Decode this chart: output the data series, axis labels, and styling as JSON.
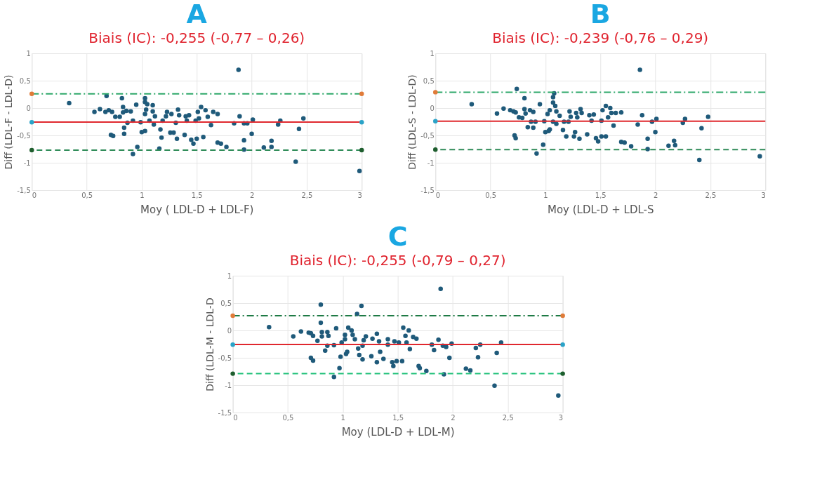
{
  "chart_data": [
    {
      "type": "scatter",
      "title": "A",
      "subtitle": "Biais (IC): -0,255 (-0,77 – 0,26)",
      "xlabel": "Moy ( LDL-D + LDL-F)",
      "ylabel": "Diff (LDL-F - LDL-D)",
      "xlim": [
        0,
        3
      ],
      "ylim": [
        -1.5,
        1
      ],
      "xticks": [
        {
          "value": 0,
          "label": "0"
        },
        {
          "value": 0.5,
          "label": "0,5"
        },
        {
          "value": 1,
          "label": "1"
        },
        {
          "value": 1.5,
          "label": "1,5"
        },
        {
          "value": 2,
          "label": "2"
        },
        {
          "value": 2.5,
          "label": "2,5"
        },
        {
          "value": 3,
          "label": "3"
        }
      ],
      "yticks": [
        {
          "value": -1.5,
          "label": "-1,5"
        },
        {
          "value": -1,
          "label": "-1"
        },
        {
          "value": -0.5,
          "label": "-0,5"
        },
        {
          "value": 0,
          "label": "0"
        },
        {
          "value": 0.5,
          "label": "0,5"
        },
        {
          "value": 1,
          "label": "1"
        }
      ],
      "grid": true,
      "marker": "circle",
      "series": [
        {
          "type": "scatter",
          "color": "#1f5a7a",
          "x": [
            0.34,
            0.57,
            0.62,
            0.68,
            0.67,
            0.7,
            0.73,
            0.72,
            0.74,
            0.76,
            0.8,
            0.82,
            0.83,
            0.83,
            0.84,
            0.84,
            0.86,
            0.87,
            0.9,
            0.92,
            0.95,
            0.92,
            0.96,
            0.99,
            1.0,
            1.03,
            1.03,
            1.05,
            1.04,
            1.03,
            1.03,
            1.07,
            1.1,
            1.1,
            1.12,
            1.11,
            1.17,
            1.18,
            1.16,
            1.19,
            1.23,
            1.22,
            1.27,
            1.26,
            1.29,
            1.31,
            1.32,
            1.33,
            1.34,
            1.39,
            1.4,
            1.41,
            1.43,
            1.45,
            1.47,
            1.49,
            1.5,
            1.51,
            1.52,
            1.54,
            1.56,
            1.58,
            1.6,
            1.63,
            1.65,
            1.69,
            1.69,
            1.72,
            1.77,
            1.84,
            1.88,
            1.89,
            1.93,
            1.93,
            1.93,
            1.96,
            2.0,
            2.01,
            2.11,
            2.18,
            2.18,
            2.24,
            2.26,
            2.4,
            2.43,
            2.47,
            2.98
          ],
          "values": [
            0.09,
            -0.07,
            -0.02,
            0.22,
            -0.07,
            -0.04,
            -0.07,
            -0.49,
            -0.51,
            -0.16,
            -0.16,
            0.18,
            0.02,
            -0.08,
            -0.36,
            -0.47,
            -0.05,
            -0.27,
            -0.06,
            -0.23,
            0.06,
            -0.84,
            -0.71,
            -0.26,
            -0.44,
            0.18,
            0.11,
            0.07,
            -0.03,
            -0.11,
            -0.42,
            -0.23,
            0.05,
            -0.06,
            -0.15,
            -0.3,
            -0.39,
            -0.54,
            -0.74,
            -0.23,
            -0.07,
            -0.15,
            -0.11,
            -0.45,
            -0.45,
            -0.27,
            -0.56,
            -0.03,
            -0.13,
            -0.49,
            -0.15,
            -0.23,
            -0.13,
            -0.58,
            -0.65,
            -0.23,
            -0.56,
            -0.07,
            -0.19,
            0.02,
            -0.53,
            -0.04,
            -0.16,
            -0.31,
            -0.07,
            -0.11,
            -0.63,
            -0.65,
            -0.71,
            -0.28,
            0.7,
            -0.15,
            -0.28,
            -0.59,
            -0.76,
            -0.28,
            -0.47,
            -0.21,
            -0.72,
            -0.6,
            -0.71,
            -0.3,
            -0.23,
            -0.98,
            -0.38,
            -0.19,
            -1.15
          ]
        },
        {
          "type": "scatter",
          "color": "#e07b39",
          "x": [
            0,
            3
          ],
          "values": [
            0.26,
            0.26
          ]
        },
        {
          "type": "scatter",
          "color": "#2aa3c8",
          "x": [
            0,
            3
          ],
          "values": [
            -0.26,
            -0.26
          ]
        },
        {
          "type": "scatter",
          "color": "#1e5e2e",
          "x": [
            0,
            3
          ],
          "values": [
            -0.77,
            -0.77
          ]
        }
      ],
      "ref_lines": [
        {
          "axis": "y",
          "value": 0.26,
          "color": "#2ea86a",
          "line_style": "dashdot"
        },
        {
          "axis": "y",
          "value": -0.255,
          "color": "#e0282e",
          "line_style": "solid"
        },
        {
          "axis": "y",
          "value": -0.77,
          "color": "#2e8b57",
          "line_style": "dashed"
        }
      ]
    },
    {
      "type": "scatter",
      "title": "B",
      "subtitle": "Biais (IC): -0,239 (-0,76 – 0,29)",
      "xlabel": "Moy (LDL-D + LDL-S",
      "ylabel": "Diff (LDL-S - LDL-D)",
      "xlim": [
        0,
        3
      ],
      "ylim": [
        -1.5,
        1
      ],
      "xticks": [
        {
          "value": 0,
          "label": "0"
        },
        {
          "value": 0.5,
          "label": "0,5"
        },
        {
          "value": 1,
          "label": "1"
        },
        {
          "value": 1.5,
          "label": "1,5"
        },
        {
          "value": 2,
          "label": "2"
        },
        {
          "value": 2.5,
          "label": "2,5"
        },
        {
          "value": 3,
          "label": "3"
        }
      ],
      "yticks": [
        {
          "value": -1.5,
          "label": "-1,5"
        },
        {
          "value": -1,
          "label": "-1"
        },
        {
          "value": -0.5,
          "label": "-0,5"
        },
        {
          "value": 0,
          "label": "0"
        },
        {
          "value": 0.5,
          "label": "0,5"
        },
        {
          "value": 1,
          "label": "1"
        }
      ],
      "grid": true,
      "marker": "circle",
      "series": [
        {
          "type": "scatter",
          "color": "#1f5a7a",
          "x": [
            0.33,
            0.56,
            0.62,
            0.68,
            0.71,
            0.73,
            0.74,
            0.72,
            0.73,
            0.76,
            0.79,
            0.81,
            0.81,
            0.82,
            0.84,
            0.86,
            0.87,
            0.89,
            0.89,
            0.91,
            0.92,
            0.95,
            0.98,
            0.99,
            1.0,
            1.02,
            1.03,
            1.04,
            1.04,
            1.07,
            1.07,
            1.08,
            1.07,
            1.09,
            1.1,
            1.1,
            1.13,
            1.16,
            1.17,
            1.19,
            1.21,
            1.22,
            1.23,
            1.26,
            1.27,
            1.28,
            1.29,
            1.31,
            1.32,
            1.33,
            1.38,
            1.4,
            1.42,
            1.44,
            1.46,
            1.48,
            1.51,
            1.51,
            1.52,
            1.55,
            1.55,
            1.57,
            1.59,
            1.6,
            1.62,
            1.64,
            1.69,
            1.69,
            1.72,
            1.78,
            1.84,
            1.86,
            1.88,
            1.93,
            1.93,
            1.97,
            2.0,
            2.01,
            2.12,
            2.17,
            2.18,
            2.25,
            2.27,
            2.4,
            2.42,
            2.48,
            2.95
          ],
          "values": [
            0.07,
            -0.1,
            -0.01,
            -0.04,
            -0.06,
            -0.08,
            0.35,
            -0.5,
            -0.55,
            -0.17,
            -0.18,
            0.18,
            -0.02,
            -0.1,
            -0.35,
            -0.04,
            -0.25,
            -0.07,
            -0.36,
            -0.25,
            -0.83,
            0.07,
            -0.67,
            -0.24,
            -0.44,
            -0.11,
            -0.42,
            -0.39,
            -0.04,
            -0.25,
            0.2,
            0.27,
            0.1,
            0.04,
            -0.06,
            -0.29,
            -0.14,
            -0.4,
            -0.25,
            -0.52,
            -0.25,
            -0.06,
            -0.16,
            -0.52,
            -0.44,
            -0.09,
            -0.17,
            -0.56,
            -0.02,
            -0.09,
            -0.48,
            -0.13,
            -0.23,
            -0.12,
            -0.55,
            -0.61,
            -0.52,
            -0.23,
            -0.04,
            0.04,
            -0.52,
            -0.17,
            0.0,
            -0.09,
            -0.32,
            -0.09,
            -0.08,
            -0.62,
            -0.63,
            -0.7,
            -0.3,
            0.7,
            -0.13,
            -0.56,
            -0.75,
            -0.25,
            -0.44,
            -0.2,
            -0.69,
            -0.6,
            -0.68,
            -0.27,
            -0.2,
            -0.95,
            -0.37,
            -0.16,
            -0.88
          ]
        },
        {
          "type": "scatter",
          "color": "#e07b39",
          "x": [
            0
          ],
          "values": [
            0.29
          ]
        },
        {
          "type": "scatter",
          "color": "#2aa3c8",
          "x": [
            0
          ],
          "values": [
            -0.24
          ]
        },
        {
          "type": "scatter",
          "color": "#1e5e2e",
          "x": [
            0
          ],
          "values": [
            -0.76
          ]
        }
      ],
      "ref_lines": [
        {
          "axis": "y",
          "value": 0.29,
          "color": "#2ea86a",
          "line_style": "dashdot"
        },
        {
          "axis": "y",
          "value": -0.239,
          "color": "#e0282e",
          "line_style": "solid"
        },
        {
          "axis": "y",
          "value": -0.76,
          "color": "#2e8b57",
          "line_style": "dashed"
        }
      ]
    },
    {
      "type": "scatter",
      "title": "C",
      "subtitle": "Biais (IC): -0,255 (-0,79 – 0,27)",
      "xlabel": "Moy (LDL-D + LDL-M)",
      "ylabel": "Diff (LDL-M - LDL-D",
      "xlim": [
        0,
        3
      ],
      "ylim": [
        -1.5,
        1
      ],
      "xticks": [
        {
          "value": 0,
          "label": "0"
        },
        {
          "value": 0.5,
          "label": "0,5"
        },
        {
          "value": 1,
          "label": "1"
        },
        {
          "value": 1.5,
          "label": "1,5"
        },
        {
          "value": 2,
          "label": "2"
        },
        {
          "value": 2.5,
          "label": "2,5"
        },
        {
          "value": 3,
          "label": "3"
        }
      ],
      "yticks": [
        {
          "value": -1.5,
          "label": "-1,5"
        },
        {
          "value": -1,
          "label": "-1"
        },
        {
          "value": -0.5,
          "label": "-0,5"
        },
        {
          "value": 0,
          "label": "0"
        },
        {
          "value": 0.5,
          "label": "0,5"
        },
        {
          "value": 1,
          "label": "1"
        }
      ],
      "grid": true,
      "marker": "circle",
      "series": [
        {
          "type": "scatter",
          "color": "#1f5a7a",
          "x": [
            0.33,
            0.55,
            0.62,
            0.69,
            0.71,
            0.73,
            0.71,
            0.73,
            0.77,
            0.8,
            0.8,
            0.81,
            0.81,
            0.84,
            0.86,
            0.87,
            0.86,
            0.92,
            0.92,
            0.94,
            0.97,
            0.98,
            0.99,
            1.02,
            1.02,
            1.03,
            1.04,
            1.05,
            1.08,
            1.09,
            1.11,
            1.13,
            1.14,
            1.15,
            1.17,
            1.18,
            1.18,
            1.19,
            1.21,
            1.26,
            1.27,
            1.31,
            1.31,
            1.34,
            1.33,
            1.37,
            1.41,
            1.41,
            1.45,
            1.46,
            1.47,
            1.49,
            1.51,
            1.54,
            1.55,
            1.57,
            1.58,
            1.6,
            1.61,
            1.64,
            1.67,
            1.69,
            1.7,
            1.76,
            1.81,
            1.83,
            1.87,
            1.89,
            1.91,
            1.92,
            1.94,
            1.97,
            1.99,
            2.12,
            2.16,
            2.21,
            2.23,
            2.25,
            2.4,
            2.38,
            2.44,
            2.96
          ],
          "values": [
            0.06,
            -0.11,
            -0.02,
            -0.04,
            -0.05,
            -0.1,
            -0.5,
            -0.55,
            -0.19,
            0.47,
            0.14,
            -0.03,
            -0.11,
            -0.37,
            -0.03,
            -0.1,
            -0.28,
            -0.85,
            -0.27,
            0.04,
            -0.69,
            -0.48,
            -0.22,
            -0.08,
            -0.16,
            -0.43,
            -0.39,
            0.05,
            0.0,
            -0.08,
            -0.16,
            0.3,
            -0.33,
            -0.45,
            0.45,
            -0.28,
            -0.53,
            -0.18,
            -0.11,
            -0.47,
            -0.15,
            -0.58,
            -0.06,
            -0.39,
            -0.2,
            -0.52,
            -0.16,
            -0.26,
            -0.58,
            -0.65,
            -0.2,
            -0.56,
            -0.22,
            -0.56,
            0.05,
            -0.1,
            -0.22,
            0.0,
            -0.34,
            -0.12,
            -0.15,
            -0.65,
            -0.69,
            -0.74,
            -0.26,
            -0.36,
            -0.17,
            0.76,
            -0.28,
            -0.8,
            -0.3,
            -0.5,
            -0.24,
            -0.7,
            -0.73,
            -0.32,
            -0.49,
            -0.26,
            -0.41,
            -1.01,
            -0.22,
            -1.19
          ]
        },
        {
          "type": "scatter",
          "color": "#e07b39",
          "x": [
            0,
            3
          ],
          "values": [
            0.27,
            0.27
          ]
        },
        {
          "type": "scatter",
          "color": "#2aa3c8",
          "x": [
            0,
            3
          ],
          "values": [
            -0.26,
            -0.26
          ]
        },
        {
          "type": "scatter",
          "color": "#1e5e2e",
          "x": [
            0,
            3
          ],
          "values": [
            -0.79,
            -0.79
          ]
        }
      ],
      "ref_lines": [
        {
          "axis": "y",
          "value": 0.27,
          "color": "#1e7a45",
          "line_style": "dashdot"
        },
        {
          "axis": "y",
          "value": -0.255,
          "color": "#e0282e",
          "line_style": "solid"
        },
        {
          "axis": "y",
          "value": -0.79,
          "color": "#22c17a",
          "line_style": "dashed"
        }
      ]
    }
  ]
}
